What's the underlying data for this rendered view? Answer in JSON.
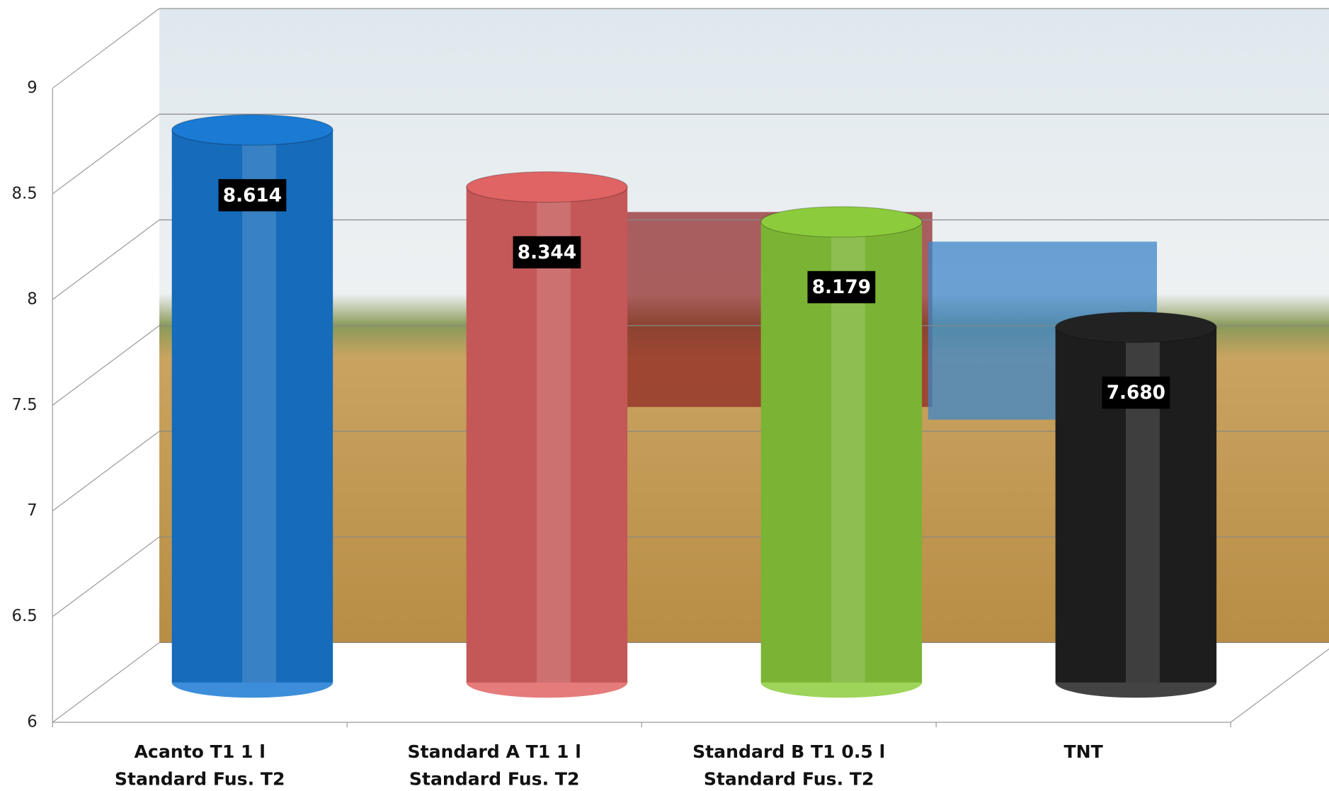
{
  "chart_data": {
    "type": "bar",
    "categories": [
      [
        "Acanto T1 1 l",
        "Standard Fus. T2"
      ],
      [
        "Standard A T1 1 l",
        "Standard Fus. T2"
      ],
      [
        "Standard B T1 0.5 l",
        "Standard Fus. T2"
      ],
      [
        "TNT"
      ]
    ],
    "values": [
      8.614,
      8.344,
      8.179,
      7.68
    ],
    "value_labels": [
      "8.614",
      "8.344",
      "8.179",
      "7.680"
    ],
    "colors": [
      "#1a7ad4",
      "#e06464",
      "#8ccc3c",
      "#222222"
    ],
    "ylim": [
      6,
      9
    ],
    "yticks": [
      6,
      6.5,
      7,
      7.5,
      8,
      8.5,
      9
    ],
    "grid": true
  }
}
